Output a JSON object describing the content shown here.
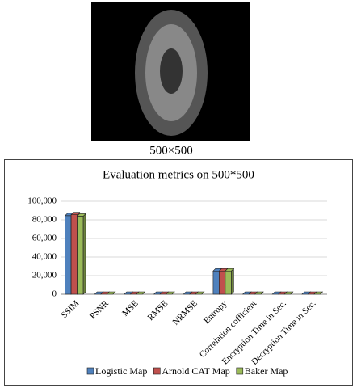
{
  "figure": {
    "caption": "500×500"
  },
  "chart_data": {
    "type": "bar",
    "title": "Evaluation metrics on 500*500",
    "categories": [
      "SSIM",
      "PSNR",
      "MSE",
      "RMSE",
      "NRMSE",
      "Entropy",
      "Correlation cofficient",
      "Encryption Time in Sec.",
      "Decryption Time in Sec."
    ],
    "series": [
      {
        "name": "Logistic Map",
        "color": "#4f81bd",
        "values": [
          84500,
          0,
          0,
          0,
          0,
          25000,
          0,
          0,
          0
        ]
      },
      {
        "name": "Arnold CAT Map",
        "color": "#c0504d",
        "values": [
          85500,
          0,
          0,
          0,
          0,
          25000,
          0,
          0,
          0
        ]
      },
      {
        "name": "Baker Map",
        "color": "#9bbb59",
        "values": [
          84000,
          0,
          0,
          0,
          0,
          25000,
          0,
          0,
          0
        ]
      }
    ],
    "ylim": [
      0,
      100000
    ],
    "yticks": [
      0,
      {
        "value": 20000,
        "label": "20,000"
      },
      {
        "value": 40000,
        "label": "40,000"
      },
      {
        "value": 60000,
        "label": "60,000"
      },
      {
        "value": 80000,
        "label": "80,000"
      },
      {
        "value": 100000,
        "label": "100,000"
      }
    ],
    "grid": true,
    "legend": "bottom"
  }
}
